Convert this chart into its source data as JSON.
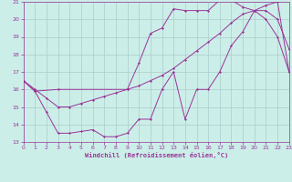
{
  "xlabel": "Windchill (Refroidissement éolien,°C)",
  "bg_color": "#cceee8",
  "grid_color": "#aacccc",
  "line_color": "#993399",
  "xmin": 0,
  "xmax": 23,
  "ymin": 13,
  "ymax": 21,
  "yticks": [
    13,
    14,
    15,
    16,
    17,
    18,
    19,
    20,
    21
  ],
  "xticks": [
    0,
    1,
    2,
    3,
    4,
    5,
    6,
    7,
    8,
    9,
    10,
    11,
    12,
    13,
    14,
    15,
    16,
    17,
    18,
    19,
    20,
    21,
    22,
    23
  ],
  "series1_x": [
    0,
    1,
    2,
    3,
    4,
    5,
    6,
    7,
    8,
    9,
    10,
    11,
    12,
    13,
    14,
    15,
    16,
    17,
    18,
    19,
    20,
    21,
    22,
    23
  ],
  "series1_y": [
    16.5,
    15.9,
    14.7,
    13.5,
    13.5,
    13.6,
    13.7,
    13.3,
    13.3,
    13.5,
    14.3,
    14.3,
    16.0,
    17.0,
    14.3,
    16.0,
    16.0,
    17.0,
    18.5,
    19.3,
    20.5,
    20.5,
    20.0,
    18.3
  ],
  "series2_x": [
    0,
    1,
    2,
    3,
    4,
    5,
    6,
    7,
    8,
    9,
    10,
    11,
    12,
    13,
    14,
    15,
    16,
    17,
    18,
    19,
    20,
    21,
    22,
    23
  ],
  "series2_y": [
    16.5,
    16.0,
    15.5,
    15.0,
    15.0,
    15.2,
    15.4,
    15.6,
    15.8,
    16.0,
    16.2,
    16.5,
    16.8,
    17.2,
    17.7,
    18.2,
    18.7,
    19.2,
    19.8,
    20.3,
    20.5,
    20.8,
    21.0,
    17.0
  ],
  "series3_x": [
    0,
    1,
    3,
    9,
    10,
    11,
    12,
    13,
    14,
    15,
    16,
    17,
    18,
    19,
    20,
    21,
    22,
    23
  ],
  "series3_y": [
    16.5,
    15.9,
    16.0,
    16.0,
    17.5,
    19.2,
    19.5,
    20.6,
    20.5,
    20.5,
    20.5,
    21.1,
    21.1,
    20.7,
    20.5,
    20.0,
    19.0,
    17.0
  ]
}
